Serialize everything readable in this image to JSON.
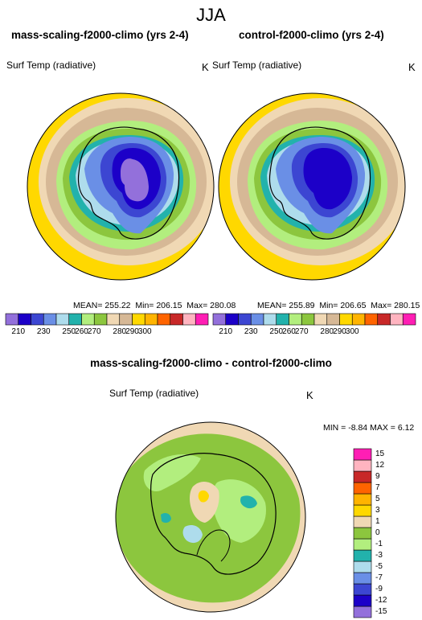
{
  "header": {
    "title": "JJA"
  },
  "panels": [
    {
      "title": "mass-scaling-f2000-climo (yrs 2-4)",
      "variable": "Surf Temp (radiative)",
      "units": "K",
      "stats": {
        "mean": "MEAN= 255.22",
        "min": "Min= 206.15",
        "max": "Max= 280.08"
      }
    },
    {
      "title": "control-f2000-climo (yrs 2-4)",
      "variable": "Surf Temp (radiative)",
      "units": "K",
      "stats": {
        "mean": "MEAN= 255.89",
        "min": "Min= 206.65",
        "max": "Max= 280.15"
      }
    }
  ],
  "colorbar_top": {
    "colors": [
      "#9370db",
      "#1c00c8",
      "#3c46d2",
      "#6a8fe6",
      "#aedcec",
      "#22b2ac",
      "#b2ee7e",
      "#8cc63e",
      "#f0d8b4",
      "#d6b896",
      "#ffd800",
      "#ffb400",
      "#ff6400",
      "#c82828",
      "#ffb4c0",
      "#ff1eb4"
    ],
    "tick_labels": [
      "210",
      "230",
      "250",
      "260",
      "270",
      "280",
      "290",
      "300"
    ]
  },
  "difference": {
    "title": "mass-scaling-f2000-climo - control-f2000-climo",
    "variable": "Surf Temp (radiative)",
    "units": "K",
    "min_label": "MIN =",
    "min_value": "-8.84",
    "max_label": "MAX =",
    "max_value": "6.12",
    "colorbar": {
      "colors": [
        "#9370db",
        "#1c00c8",
        "#3c46d2",
        "#6a8fe6",
        "#aedcec",
        "#22b2ac",
        "#b2ee7e",
        "#8cc63e",
        "#f0d8b4",
        "#ffd800",
        "#ffb400",
        "#ff6400",
        "#c82828",
        "#ffb4c0",
        "#ff1eb4"
      ],
      "tick_labels": [
        "15",
        "12",
        "9",
        "7",
        "5",
        "3",
        "1",
        "0",
        "-1",
        "-3",
        "-5",
        "-7",
        "-9",
        "-12",
        "-15"
      ]
    }
  }
}
